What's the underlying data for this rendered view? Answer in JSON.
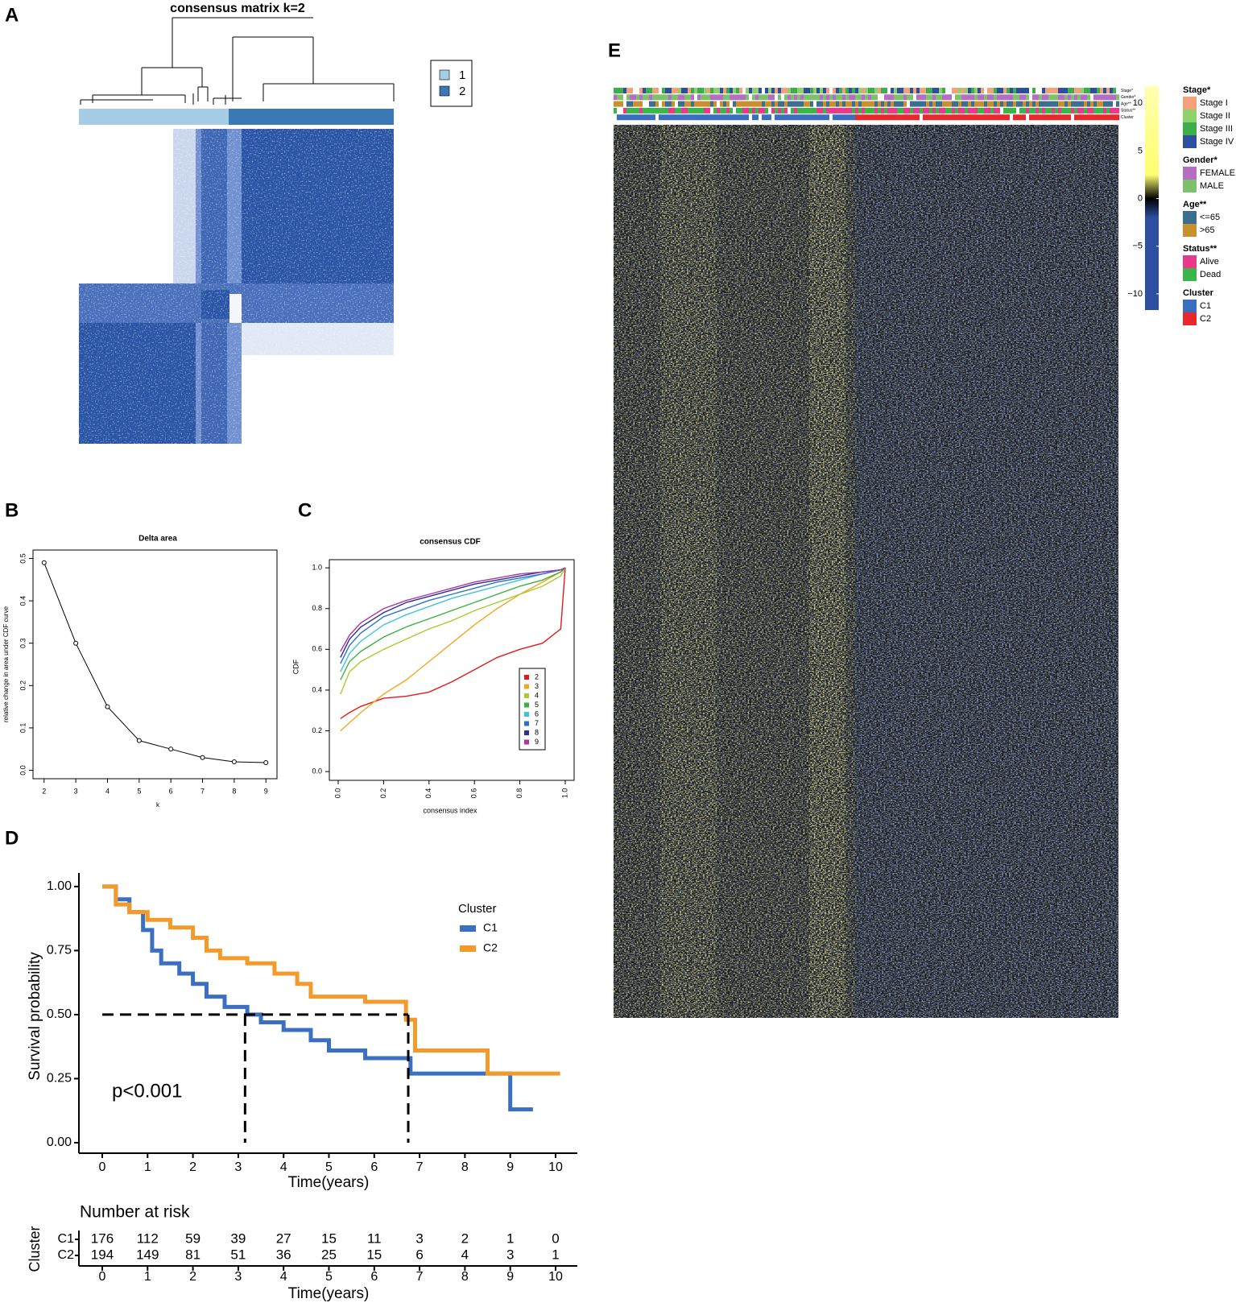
{
  "panels": [
    "A",
    "B",
    "C",
    "D",
    "E"
  ],
  "chart_data": [
    {
      "type": "heatmap",
      "title": "consensus matrix k=2",
      "legend": [
        {
          "label": "1",
          "color": "#a6cde6"
        },
        {
          "label": "2",
          "color": "#3b78b6"
        }
      ]
    },
    {
      "type": "line",
      "title": "Delta area",
      "xlabel": "k",
      "ylabel": "relative change in area under CDF curve",
      "x": [
        2,
        3,
        4,
        5,
        6,
        7,
        8,
        9
      ],
      "values": [
        0.49,
        0.3,
        0.15,
        0.07,
        0.05,
        0.03,
        0.02,
        0.018
      ],
      "xlim": [
        1.65,
        9.35
      ],
      "ylim": [
        -0.02,
        0.52
      ],
      "xticks": [
        2,
        3,
        4,
        5,
        6,
        7,
        8,
        9
      ],
      "yticks": [
        {
          "value": 0,
          "label": "0.0"
        },
        0.1,
        0.2,
        0.3,
        0.4,
        0.5
      ],
      "color": "#000000"
    },
    {
      "type": "line",
      "title": "consensus CDF",
      "xlabel": "consensus index",
      "ylabel": "CDF",
      "x": [
        0.01,
        0.05,
        0.1,
        0.2,
        0.3,
        0.4,
        0.5,
        0.6,
        0.7,
        0.8,
        0.9,
        0.98,
        1.0
      ],
      "series": [
        {
          "name": "2",
          "color": "#e31a1c",
          "values": [
            0.26,
            0.29,
            0.32,
            0.36,
            0.37,
            0.39,
            0.44,
            0.5,
            0.56,
            0.6,
            0.63,
            0.7,
            1.0
          ]
        },
        {
          "name": "3",
          "color": "#f5a623",
          "values": [
            0.2,
            0.24,
            0.29,
            0.38,
            0.45,
            0.54,
            0.63,
            0.72,
            0.8,
            0.87,
            0.93,
            0.98,
            1.0
          ]
        },
        {
          "name": "4",
          "color": "#a6cc2e",
          "values": [
            0.38,
            0.49,
            0.54,
            0.6,
            0.65,
            0.7,
            0.74,
            0.79,
            0.83,
            0.87,
            0.91,
            0.96,
            1.0
          ]
        },
        {
          "name": "5",
          "color": "#3cb043",
          "values": [
            0.45,
            0.54,
            0.59,
            0.66,
            0.71,
            0.75,
            0.79,
            0.83,
            0.87,
            0.91,
            0.94,
            0.98,
            1.0
          ]
        },
        {
          "name": "6",
          "color": "#40c4d8",
          "values": [
            0.49,
            0.58,
            0.64,
            0.72,
            0.77,
            0.81,
            0.85,
            0.88,
            0.91,
            0.94,
            0.97,
            0.99,
            1.0
          ]
        },
        {
          "name": "7",
          "color": "#2f6fd0",
          "values": [
            0.53,
            0.62,
            0.68,
            0.76,
            0.8,
            0.84,
            0.87,
            0.9,
            0.93,
            0.95,
            0.97,
            0.99,
            1.0
          ]
        },
        {
          "name": "8",
          "color": "#2a2f9a",
          "values": [
            0.56,
            0.65,
            0.71,
            0.78,
            0.83,
            0.86,
            0.89,
            0.92,
            0.94,
            0.96,
            0.98,
            0.99,
            1.0
          ]
        },
        {
          "name": "9",
          "color": "#b0359c",
          "values": [
            0.59,
            0.67,
            0.73,
            0.8,
            0.84,
            0.87,
            0.9,
            0.93,
            0.95,
            0.97,
            0.98,
            0.99,
            1.0
          ]
        }
      ],
      "xlim": [
        -0.039,
        1.039
      ],
      "ylim": [
        -0.043,
        1.04
      ],
      "xticks": [
        {
          "value": 0,
          "label": "0.0"
        },
        0.2,
        0.4,
        0.6,
        0.8,
        {
          "value": 1,
          "label": "1.0"
        }
      ],
      "yticks": [
        {
          "value": 0,
          "label": "0.0"
        },
        0.2,
        0.4,
        0.6,
        0.8,
        {
          "value": 1,
          "label": "1.0"
        }
      ]
    },
    {
      "type": "survival",
      "xlabel": "Time(years)",
      "ylabel": "Survival probability",
      "annotation": "p<0.001",
      "legend_title": "Cluster",
      "series": [
        {
          "name": "C1",
          "color": "#3b6fc2",
          "x": [
            0,
            0.3,
            0.6,
            0.9,
            1.1,
            1.3,
            1.7,
            2,
            2.3,
            2.7,
            3.2,
            3.5,
            4,
            4.6,
            5,
            5.8,
            6.8,
            8,
            9,
            9.5
          ],
          "values": [
            1,
            0.95,
            0.9,
            0.83,
            0.75,
            0.7,
            0.66,
            0.62,
            0.57,
            0.53,
            0.5,
            0.47,
            0.44,
            0.4,
            0.36,
            0.33,
            0.27,
            0.27,
            0.13,
            0.13
          ]
        },
        {
          "name": "C2",
          "color": "#f39a2b",
          "x": [
            0,
            0.3,
            0.6,
            1,
            1.5,
            2,
            2.3,
            2.6,
            3.2,
            3.8,
            4.3,
            4.6,
            5.8,
            6.7,
            6.9,
            8.5,
            10.1
          ],
          "values": [
            1,
            0.93,
            0.9,
            0.87,
            0.84,
            0.8,
            0.75,
            0.72,
            0.7,
            0.66,
            0.62,
            0.57,
            0.55,
            0.48,
            0.36,
            0.27,
            0.27
          ]
        }
      ],
      "median_lines": {
        "y": 0.5,
        "x": [
          3.15,
          6.75
        ]
      },
      "xlim": [
        -0.515,
        10.48
      ],
      "ylim": [
        -0.041,
        1.053
      ],
      "xticks": [
        0,
        1,
        2,
        3,
        4,
        5,
        6,
        7,
        8,
        9,
        10
      ],
      "yticks": [
        {
          "value": 0,
          "label": "0.00"
        },
        {
          "value": 0.25,
          "label": "0.25"
        },
        {
          "value": 0.5,
          "label": "0.50"
        },
        {
          "value": 0.75,
          "label": "0.75"
        },
        {
          "value": 1,
          "label": "1.00"
        }
      ],
      "risk_table": {
        "title": "Number at risk",
        "ylabel": "Cluster",
        "xlabel": "Time(years)",
        "rows": [
          [
            176,
            112,
            59,
            39,
            27,
            15,
            11,
            3,
            2,
            1,
            0
          ],
          [
            194,
            149,
            81,
            51,
            36,
            25,
            15,
            6,
            4,
            3,
            1
          ]
        ]
      }
    },
    {
      "type": "heatmap",
      "colorbar": {
        "lim": [
          -11.7,
          11.8
        ],
        "ticks": [
          10,
          5,
          0,
          {
            "value": -5,
            "label": "−5"
          },
          {
            "value": -10,
            "label": "−10"
          }
        ],
        "colors": [
          "#2c4fa2",
          "#000000",
          "#ffff70"
        ]
      },
      "legend_groups": [
        {
          "title": "Stage*",
          "items": [
            {
              "label": "Stage I",
              "color": "#f4a07a"
            },
            {
              "label": "Stage II",
              "color": "#8fd16a"
            },
            {
              "label": "Stage III",
              "color": "#3bb04a"
            },
            {
              "label": "Stage IV",
              "color": "#2e4fa0"
            }
          ]
        },
        {
          "title": "Gender*",
          "items": [
            {
              "label": "FEMALE",
              "color": "#b56ec4"
            },
            {
              "label": "MALE",
              "color": "#7dc26a"
            }
          ]
        },
        {
          "title": "Age**",
          "items": [
            {
              "label": "<=65",
              "color": "#3c6e8f"
            },
            {
              "label": ">65",
              "color": "#c8902e"
            }
          ]
        },
        {
          "title": "Status**",
          "items": [
            {
              "label": "Alive",
              "color": "#e8398a"
            },
            {
              "label": "Dead",
              "color": "#39b54a"
            }
          ]
        },
        {
          "title": "Cluster",
          "items": [
            {
              "label": "C1",
              "color": "#3a6fc0"
            },
            {
              "label": "C2",
              "color": "#e8282b"
            }
          ]
        }
      ]
    }
  ]
}
